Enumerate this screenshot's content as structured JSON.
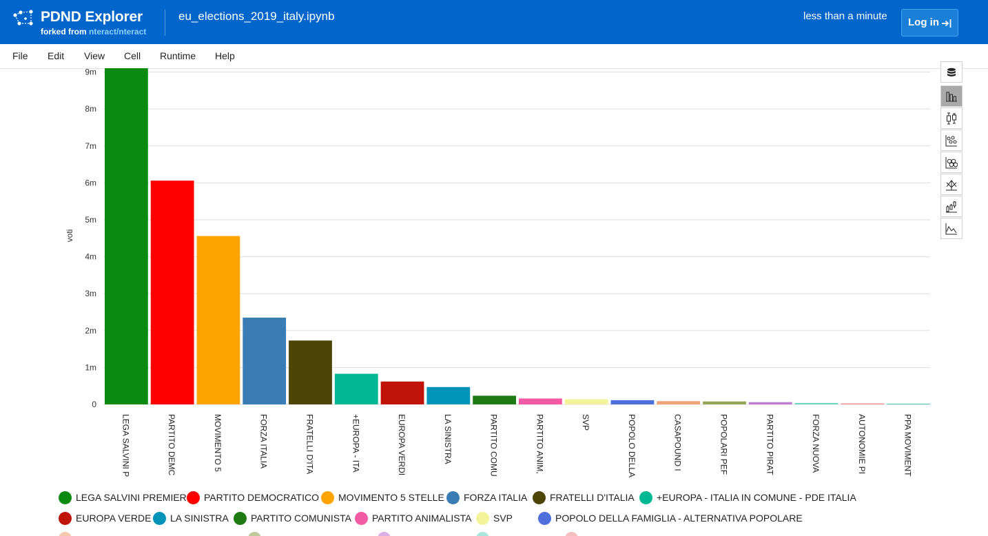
{
  "app": {
    "brand": "PDND Explorer",
    "forked_prefix": "forked from ",
    "forked_link": "nteract/nteract",
    "notebook_title": "eu_elections_2019_italy.ipynb",
    "last_saved": "less than a minute",
    "login_label": "Log in"
  },
  "menu": {
    "items": [
      "File",
      "Edit",
      "View",
      "Cell",
      "Runtime",
      "Help"
    ]
  },
  "sidebar": {
    "icons": [
      "database-icon",
      "bar-chart-icon",
      "box-plot-icon",
      "scatter-icon",
      "hexbin-icon",
      "parallel-icon",
      "candlestick-icon",
      "line-chart-icon"
    ],
    "active_index": 1
  },
  "chart_data": {
    "type": "bar",
    "title": "",
    "xlabel": "",
    "ylabel": "voti",
    "ylim": [
      0,
      9200000
    ],
    "yticks": [
      0,
      1000000,
      2000000,
      3000000,
      4000000,
      5000000,
      6000000,
      7000000,
      8000000,
      9000000
    ],
    "ytick_labels": [
      "0",
      "1m",
      "2m",
      "3m",
      "4m",
      "5m",
      "6m",
      "7m",
      "8m",
      "9m"
    ],
    "grid": true,
    "legend_position": "bottom",
    "categories": [
      "LEGA SALVINI PREMIER",
      "PARTITO DEMOCRATICO",
      "MOVIMENTO 5 STELLE",
      "FORZA ITALIA",
      "FRATELLI D'ITALIA",
      "+EUROPA - ITALIA IN COMUNE - PDE ITALIA",
      "EUROPA VERDE",
      "LA SINISTRA",
      "PARTITO COMUNISTA",
      "PARTITO ANIMALISTA",
      "SVP",
      "POPOLO DELLA FAMIGLIA - ALTERNATIVA POPOLARE",
      "CASAPOUND ITALIA",
      "POPOLARI PER L'ITALIA",
      "PARTITO PIRATA",
      "FORZA NUOVA",
      "AUTONOMIE PER L'EUROPA",
      "PPA MOVIMENTO POLITICO PENSIERO AZIONE"
    ],
    "tick_labels": [
      "LEGA SALVINI P",
      "PARTITO DEMC",
      "MOVIMENTO 5",
      "FORZA ITALIA",
      "FRATELLI D'ITA",
      "+EUROPA - ITA",
      "EUROPA VERDI",
      "LA SINISTRA",
      "PARTITO COMU",
      "PARTITO ANIM,",
      "SVP",
      "POPOLO DELLA",
      "CASAPOUND I",
      "POPOLARI PEF",
      "PARTITO PIRAT",
      "FORZA NUOVA",
      "AUTONOMIE PI",
      "PPA MOVIMENT"
    ],
    "values": [
      9180000,
      6060000,
      4560000,
      2350000,
      1730000,
      830000,
      620000,
      470000,
      235000,
      160000,
      142000,
      115000,
      89000,
      80000,
      61000,
      40000,
      28000,
      18000
    ],
    "colors": [
      "#0b8a12",
      "#ff0000",
      "#ffa300",
      "#3a7db4",
      "#4d4408",
      "#00b894",
      "#c0140a",
      "#0094b8",
      "#1e7a12",
      "#f25aa5",
      "#f3f39a",
      "#4f6fdc",
      "#eea578",
      "#93a658",
      "#c07ad2",
      "#6fd6c4",
      "#f09595",
      "#45c9ba"
    ]
  },
  "legend": {
    "row1": [
      {
        "label": "LEGA SALVINI PREMIER",
        "color": "#0b8a12"
      },
      {
        "label": "PARTITO DEMOCRATICO",
        "color": "#ff0000"
      },
      {
        "label": "MOVIMENTO 5 STELLE",
        "color": "#ffa300"
      },
      {
        "label": "FORZA ITALIA",
        "color": "#3a7db4"
      },
      {
        "label": "FRATELLI D'ITALIA",
        "color": "#4d4408"
      },
      {
        "label": "+EUROPA - ITALIA IN COMUNE - PDE ITALIA",
        "color": "#00b894"
      }
    ],
    "row2": [
      {
        "label": "EUROPA VERDE",
        "color": "#c0140a"
      },
      {
        "label": "LA SINISTRA",
        "color": "#0094b8"
      },
      {
        "label": "PARTITO COMUNISTA",
        "color": "#1e7a12"
      },
      {
        "label": "PARTITO ANIMALISTA",
        "color": "#f25aa5"
      },
      {
        "label": "SVP",
        "color": "#f3f39a"
      },
      {
        "label": "POPOLO DELLA FAMIGLIA - ALTERNATIVA POPOLARE",
        "color": "#4f6fdc"
      }
    ],
    "row3_colors": [
      "#eea578",
      "#93a658",
      "#c07ad2",
      "#6fd6c4",
      "#f09595"
    ]
  }
}
